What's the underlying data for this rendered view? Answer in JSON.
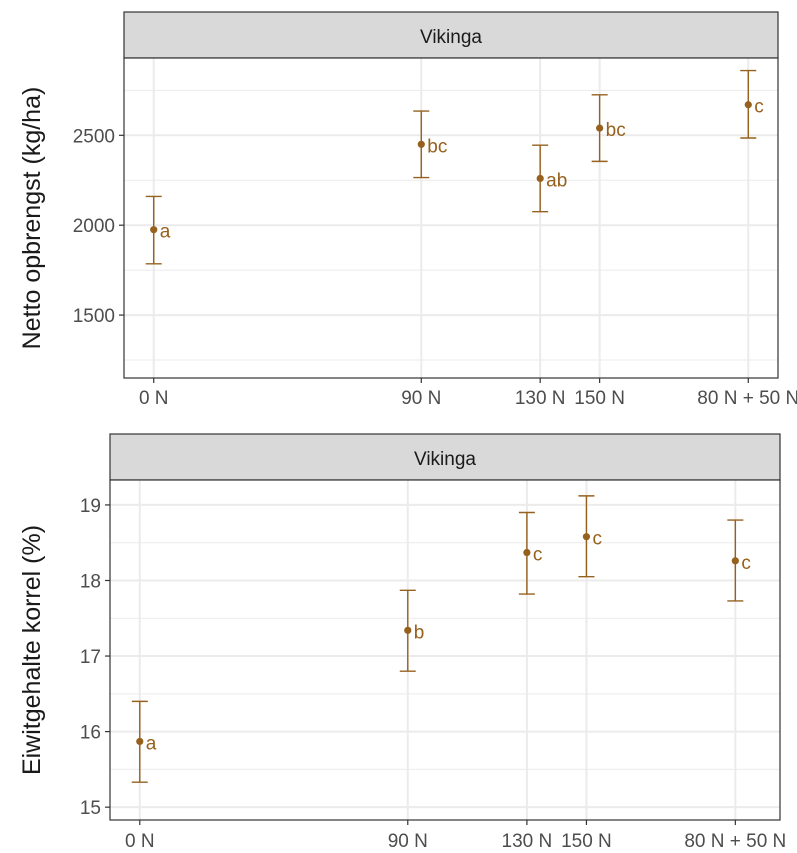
{
  "chart_data": [
    {
      "type": "scatter",
      "facet_title": "Vikinga",
      "ylabel": "Netto opbrengst (kg/ha)",
      "xlabel": "",
      "x_ticks": [
        {
          "label": "0 N",
          "x": 0
        },
        {
          "label": "90 N",
          "x": 90
        },
        {
          "label": "130 N",
          "x": 130
        },
        {
          "label": "150 N",
          "x": 150
        },
        {
          "label": "80 N + 50 N",
          "x": 200
        }
      ],
      "xlim": [
        -10,
        210
      ],
      "ylim": [
        1150,
        2930
      ],
      "y_ticks": [
        1500,
        2000,
        2500
      ],
      "y_minor_ticks": [
        1250,
        1750,
        2250,
        2750
      ],
      "points": [
        {
          "x": 0,
          "y": 1975,
          "lower": 1785,
          "upper": 2160,
          "group": "a"
        },
        {
          "x": 90,
          "y": 2450,
          "lower": 2265,
          "upper": 2635,
          "group": "bc"
        },
        {
          "x": 130,
          "y": 2260,
          "lower": 2075,
          "upper": 2445,
          "group": "ab"
        },
        {
          "x": 150,
          "y": 2540,
          "lower": 2355,
          "upper": 2725,
          "group": "bc"
        },
        {
          "x": 200,
          "y": 2670,
          "lower": 2485,
          "upper": 2860,
          "group": "c"
        }
      ],
      "colors": {
        "points": "#96601d",
        "panel_border": "#333333",
        "strip_fill": "#d9d9d9",
        "grid": "#ebebeb"
      },
      "grid": true
    },
    {
      "type": "scatter",
      "facet_title": "Vikinga",
      "ylabel": "Eiwitgehalte korrel (%)",
      "xlabel": "",
      "x_ticks": [
        {
          "label": "0 N",
          "x": 0
        },
        {
          "label": "90 N",
          "x": 90
        },
        {
          "label": "130 N",
          "x": 130
        },
        {
          "label": "150 N",
          "x": 150
        },
        {
          "label": "80 N + 50 N",
          "x": 200
        }
      ],
      "xlim": [
        -10,
        215
      ],
      "ylim": [
        14.83,
        19.33
      ],
      "y_ticks": [
        15,
        16,
        17,
        18,
        19
      ],
      "y_minor_ticks": [
        15.5,
        16.5,
        17.5,
        18.5
      ],
      "points": [
        {
          "x": 0,
          "y": 15.87,
          "lower": 15.33,
          "upper": 16.4,
          "group": "a"
        },
        {
          "x": 90,
          "y": 17.34,
          "lower": 16.8,
          "upper": 17.87,
          "group": "b"
        },
        {
          "x": 130,
          "y": 18.37,
          "lower": 17.82,
          "upper": 18.9,
          "group": "c"
        },
        {
          "x": 150,
          "y": 18.58,
          "lower": 18.05,
          "upper": 19.12,
          "group": "c"
        },
        {
          "x": 200,
          "y": 18.26,
          "lower": 17.73,
          "upper": 18.8,
          "group": "c"
        }
      ],
      "colors": {
        "points": "#96601d",
        "panel_border": "#333333",
        "strip_fill": "#d9d9d9",
        "grid": "#ebebeb"
      },
      "grid": true
    }
  ]
}
